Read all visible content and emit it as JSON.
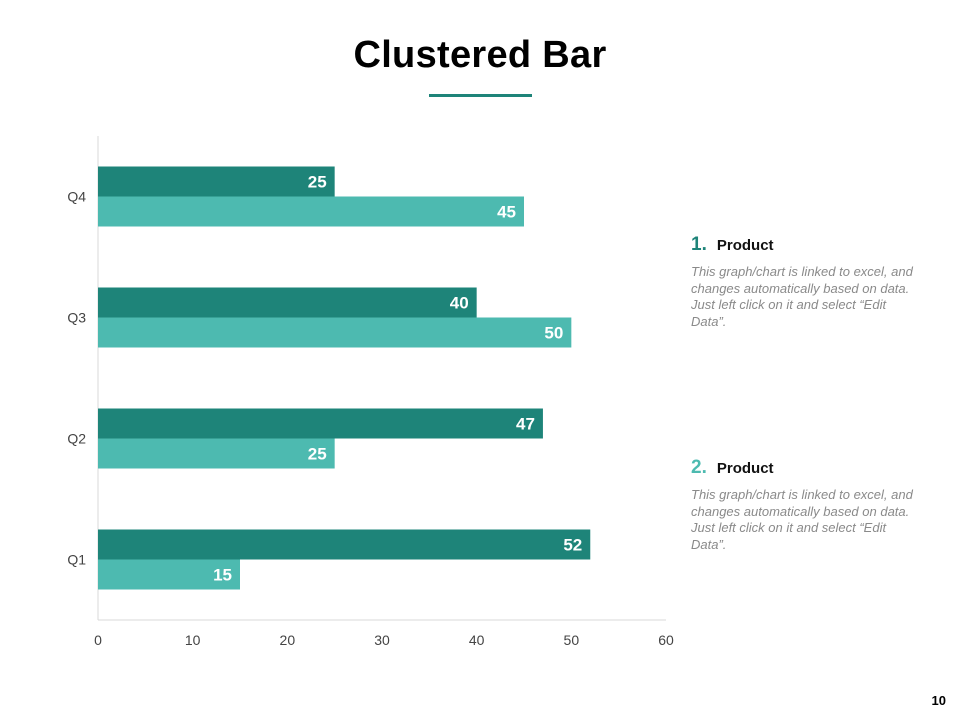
{
  "slide": {
    "title": "Clustered Bar",
    "page_number": "10"
  },
  "colors": {
    "accent": "#1e8479",
    "series_1": "#1e8479",
    "series_2": "#4dbab0",
    "axis": "#d9d9d9",
    "legend_num_1": "#1e8479",
    "legend_num_2": "#4dbab0"
  },
  "legend": [
    {
      "number": "1.",
      "label": "Product",
      "description": "This graph/chart is linked to excel, and changes automatically based on data. Just left click on it and select “Edit Data”."
    },
    {
      "number": "2.",
      "label": "Product",
      "description": "This graph/chart is linked to excel, and changes automatically based on data. Just left click on it and select “Edit Data”."
    }
  ],
  "chart_data": {
    "type": "bar",
    "orientation": "horizontal",
    "title": "",
    "xlabel": "",
    "ylabel": "",
    "categories": [
      "Q1",
      "Q2",
      "Q3",
      "Q4"
    ],
    "series": [
      {
        "values": [
          52,
          47,
          40,
          25
        ]
      },
      {
        "values": [
          15,
          25,
          50,
          45
        ]
      }
    ],
    "xlim": [
      0,
      60
    ],
    "x_ticks": [
      0,
      10,
      20,
      30,
      40,
      50,
      60
    ],
    "grid": false,
    "data_labels": true
  }
}
